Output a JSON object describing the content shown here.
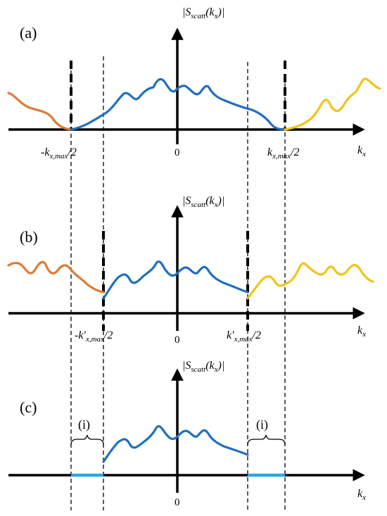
{
  "colors": {
    "main_spectrum": "#1f6fbf",
    "left_alias": "#e07a35",
    "right_alias": "#f2c416",
    "gap_segment": "#27a9e1",
    "axes": "#000000"
  },
  "axis_labels": {
    "y": {
      "main": "|S",
      "sub": "scatt",
      "rest": "(k",
      "sub2": "x",
      "tail": ")|"
    },
    "x": {
      "main": "k",
      "sub": "x"
    },
    "zero": "0"
  },
  "panels": [
    {
      "label": "(a)",
      "left_limit": {
        "prefix": "-",
        "main": "k",
        "sub": "x,max",
        "tail": "/2"
      },
      "right_limit": {
        "main": "k",
        "sub": "x,max",
        "tail": "/2"
      }
    },
    {
      "label": "(b)",
      "left_limit": {
        "prefix": "-",
        "main": "k′",
        "sub": "x,max",
        "tail": "/2"
      },
      "right_limit": {
        "main": "k′",
        "sub": "x,max",
        "tail": "/2"
      }
    },
    {
      "label": "(c)",
      "brace_label": "(i)"
    }
  ]
}
